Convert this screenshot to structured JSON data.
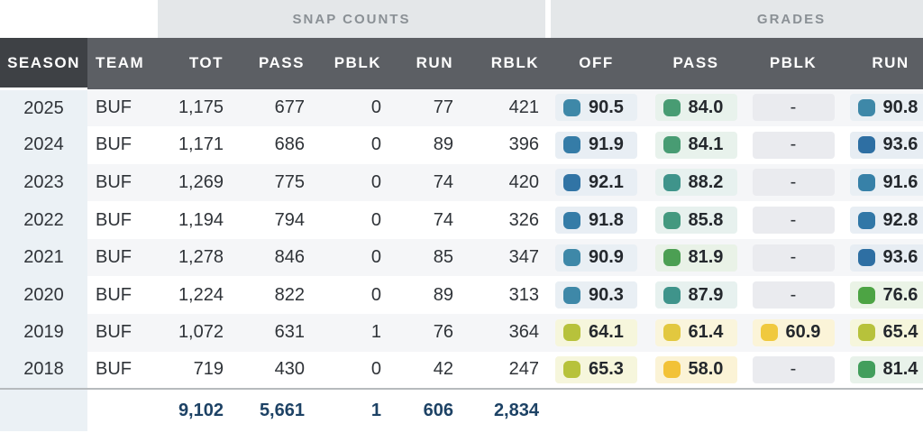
{
  "groups": {
    "snap_counts": "SNAP COUNTS",
    "grades": "GRADES"
  },
  "columns": {
    "season": "SEASON",
    "team": "TEAM",
    "tot": "TOT",
    "pass": "PASS",
    "pblk": "PBLK",
    "run": "RUN",
    "rblk": "RBLK",
    "grade_off": "OFF",
    "grade_pass": "PASS",
    "grade_pblk": "PBLK",
    "grade_run": "RUN"
  },
  "colors": {
    "dash_pill_bg": "#eaebef",
    "header_bg": "#5c5f64",
    "sorted_header_bg": "#3e4145",
    "group_bg": "#e4e7e9",
    "stripe_bg": "#f5f6f8",
    "season_col_bg": "#ebf1f5",
    "totals_text": "#1d4265"
  },
  "rows": [
    {
      "season": "2025",
      "team": "BUF",
      "snaps": {
        "tot": "1,175",
        "pass": "677",
        "pblk": "0",
        "run": "77",
        "rblk": "421"
      },
      "grades": {
        "off": {
          "value": "90.5",
          "swatch": "#3e88a8",
          "bg": "#e9eff4"
        },
        "pass": {
          "value": "84.0",
          "swatch": "#489c73",
          "bg": "#e8f2ec"
        },
        "pblk": {
          "value": "-"
        },
        "run": {
          "value": "90.8",
          "swatch": "#3e88a8",
          "bg": "#e9eff4"
        }
      }
    },
    {
      "season": "2024",
      "team": "BUF",
      "snaps": {
        "tot": "1,171",
        "pass": "686",
        "pblk": "0",
        "run": "89",
        "rblk": "396"
      },
      "grades": {
        "off": {
          "value": "91.9",
          "swatch": "#357ca7",
          "bg": "#e8eef4"
        },
        "pass": {
          "value": "84.1",
          "swatch": "#489c73",
          "bg": "#e8f2ec"
        },
        "pblk": {
          "value": "-"
        },
        "run": {
          "value": "93.6",
          "swatch": "#2e6fa3",
          "bg": "#e7edf3"
        }
      }
    },
    {
      "season": "2023",
      "team": "BUF",
      "snaps": {
        "tot": "1,269",
        "pass": "775",
        "pblk": "0",
        "run": "74",
        "rblk": "420"
      },
      "grades": {
        "off": {
          "value": "92.1",
          "swatch": "#3174a5",
          "bg": "#e8eef4"
        },
        "pass": {
          "value": "88.2",
          "swatch": "#3f948b",
          "bg": "#e7f1ef"
        },
        "pblk": {
          "value": "-"
        },
        "run": {
          "value": "91.6",
          "swatch": "#3781a8",
          "bg": "#e9eff4"
        }
      }
    },
    {
      "season": "2022",
      "team": "BUF",
      "snaps": {
        "tot": "1,194",
        "pass": "794",
        "pblk": "0",
        "run": "74",
        "rblk": "326"
      },
      "grades": {
        "off": {
          "value": "91.8",
          "swatch": "#357ca7",
          "bg": "#e8eef4"
        },
        "pass": {
          "value": "85.8",
          "swatch": "#43997f",
          "bg": "#e7f1ee"
        },
        "pblk": {
          "value": "-"
        },
        "run": {
          "value": "92.8",
          "swatch": "#3177a7",
          "bg": "#e8eef4"
        }
      }
    },
    {
      "season": "2021",
      "team": "BUF",
      "snaps": {
        "tot": "1,278",
        "pass": "846",
        "pblk": "0",
        "run": "85",
        "rblk": "347"
      },
      "grades": {
        "off": {
          "value": "90.9",
          "swatch": "#3e88a8",
          "bg": "#e9eff4"
        },
        "pass": {
          "value": "81.9",
          "swatch": "#4c9f53",
          "bg": "#e9f2e7"
        },
        "pblk": {
          "value": "-"
        },
        "run": {
          "value": "93.6",
          "swatch": "#2e6fa3",
          "bg": "#e7edf3"
        }
      }
    },
    {
      "season": "2020",
      "team": "BUF",
      "snaps": {
        "tot": "1,224",
        "pass": "822",
        "pblk": "0",
        "run": "89",
        "rblk": "313"
      },
      "grades": {
        "off": {
          "value": "90.3",
          "swatch": "#3e88a8",
          "bg": "#e9eff4"
        },
        "pass": {
          "value": "87.9",
          "swatch": "#3f948b",
          "bg": "#e7f1ef"
        },
        "pblk": {
          "value": "-"
        },
        "run": {
          "value": "76.6",
          "swatch": "#4da444",
          "bg": "#eaf3e6"
        }
      }
    },
    {
      "season": "2019",
      "team": "BUF",
      "snaps": {
        "tot": "1,072",
        "pass": "631",
        "pblk": "1",
        "run": "76",
        "rblk": "364"
      },
      "grades": {
        "off": {
          "value": "64.1",
          "swatch": "#b7c23b",
          "bg": "#f6f6dc"
        },
        "pass": {
          "value": "61.4",
          "swatch": "#e2c83f",
          "bg": "#faf5dc"
        },
        "pblk": {
          "value": "60.9",
          "swatch": "#f0c93e",
          "bg": "#fbf4d8"
        },
        "run": {
          "value": "65.4",
          "swatch": "#b7c23b",
          "bg": "#f6f6dc"
        }
      }
    },
    {
      "season": "2018",
      "team": "BUF",
      "snaps": {
        "tot": "719",
        "pass": "430",
        "pblk": "0",
        "run": "42",
        "rblk": "247"
      },
      "grades": {
        "off": {
          "value": "65.3",
          "swatch": "#b7c23b",
          "bg": "#f6f6dc"
        },
        "pass": {
          "value": "58.0",
          "swatch": "#f2c237",
          "bg": "#fbf3d6"
        },
        "pblk": {
          "value": "-"
        },
        "run": {
          "value": "81.4",
          "swatch": "#429e5c",
          "bg": "#e8f2ea"
        }
      }
    }
  ],
  "totals": {
    "tot": "9,102",
    "pass": "5,661",
    "pblk": "1",
    "run": "606",
    "rblk": "2,834"
  }
}
